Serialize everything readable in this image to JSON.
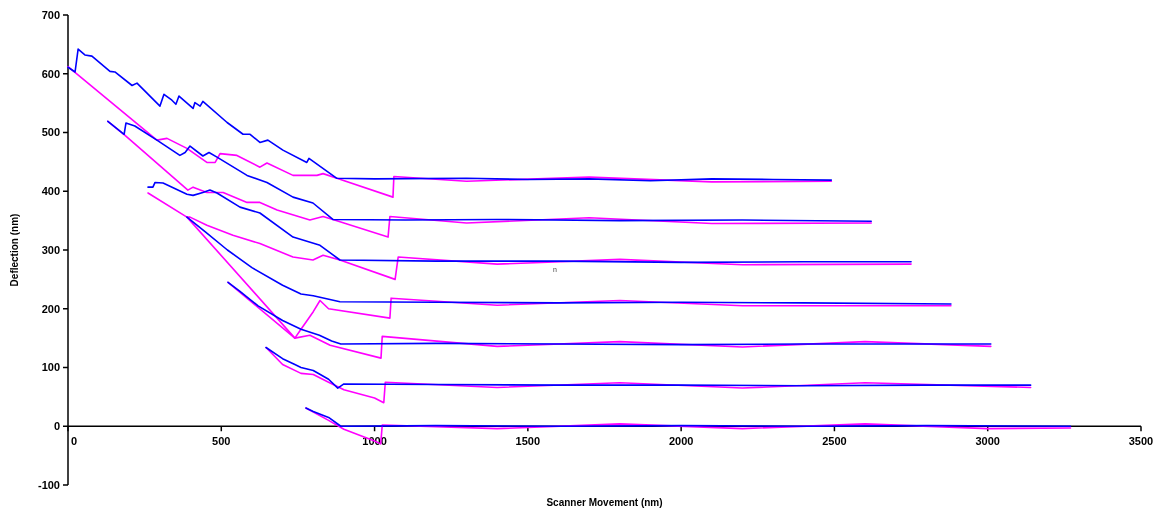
{
  "chart_data": {
    "type": "line",
    "xlabel": "Scanner Movement (nm)",
    "ylabel": "Deflection (nm)",
    "xlim": [
      0,
      3500
    ],
    "ylim": [
      -100,
      700
    ],
    "xticks": [
      0,
      500,
      1000,
      1500,
      2000,
      2500,
      3000,
      3500
    ],
    "yticks": [
      -100,
      0,
      100,
      200,
      300,
      400,
      500,
      600,
      700
    ],
    "grid": false,
    "annotations": [
      "n"
    ],
    "series": [
      {
        "color": "#ff00ff",
        "x": [
          0,
          290,
          323,
          388,
          453,
          480,
          496,
          551,
          626,
          649,
          734,
          812,
          832,
          877,
          1060,
          1063,
          1300,
          1700,
          2100,
          2490
        ],
        "values": [
          612,
          487,
          490,
          473,
          449,
          449,
          464,
          461,
          441,
          448,
          427,
          427,
          430,
          422,
          390,
          425,
          417,
          424,
          416,
          417
        ]
      },
      {
        "color": "#0000ff",
        "x": [
          0,
          23,
          33,
          55,
          78,
          137,
          153,
          209,
          225,
          300,
          313,
          339,
          352,
          362,
          408,
          414,
          431,
          440,
          519,
          571,
          594,
          626,
          652,
          701,
          779,
          786,
          877,
          1000,
          1300,
          1500,
          1700,
          1900,
          2100,
          2300,
          2490
        ],
        "values": [
          611,
          603,
          642,
          632,
          630,
          604,
          603,
          580,
          584,
          545,
          565,
          555,
          548,
          562,
          541,
          551,
          545,
          553,
          517,
          497,
          497,
          483,
          487,
          470,
          449,
          456,
          422,
          421,
          422,
          420,
          421,
          418,
          421,
          420,
          419
        ]
      },
      {
        "color": "#ff00ff",
        "x": [
          130,
          186,
          391,
          408,
          453,
          506,
          584,
          626,
          682,
          789,
          832,
          864,
          1044,
          1050,
          1300,
          1700,
          2100,
          2620
        ],
        "values": [
          519,
          495,
          402,
          407,
          398,
          398,
          381,
          381,
          368,
          351,
          357,
          352,
          322,
          357,
          346,
          355,
          345,
          346
        ]
      },
      {
        "color": "#0000ff",
        "x": [
          130,
          183,
          189,
          218,
          290,
          365,
          382,
          398,
          440,
          460,
          486,
          584,
          649,
          734,
          799,
          864,
          1100,
          1400,
          1800,
          2200,
          2620
        ],
        "values": [
          519,
          497,
          516,
          511,
          487,
          461,
          466,
          477,
          460,
          466,
          458,
          427,
          415,
          390,
          380,
          352,
          351,
          352,
          350,
          351,
          349
        ]
      },
      {
        "color": "#ff00ff",
        "x": [
          261,
          388,
          398,
          453,
          538,
          626,
          734,
          799,
          832,
          887,
          1067,
          1077,
          1400,
          1800,
          2200,
          2750
        ],
        "values": [
          397,
          356,
          356,
          342,
          325,
          311,
          288,
          283,
          291,
          283,
          250,
          288,
          276,
          284,
          275,
          276
        ]
      },
      {
        "color": "#0000ff",
        "x": [
          261,
          277,
          284,
          310,
          388,
          408,
          440,
          463,
          486,
          561,
          626,
          734,
          822,
          887,
          1200,
          1600,
          2000,
          2400,
          2750
        ],
        "values": [
          407,
          407,
          415,
          414,
          395,
          393,
          398,
          402,
          397,
          373,
          363,
          322,
          308,
          283,
          281,
          281,
          279,
          280,
          280
        ]
      },
      {
        "color": "#ff00ff",
        "x": [
          388,
          740,
          760,
          800,
          822,
          850,
          1050,
          1054,
          1400,
          1800,
          2200,
          2880
        ],
        "values": [
          356,
          150,
          165,
          195,
          214,
          200,
          184,
          218,
          206,
          214,
          205,
          205
        ]
      },
      {
        "color": "#0000ff",
        "x": [
          388,
          450,
          520,
          600,
          700,
          760,
          800,
          887,
          1200,
          1600,
          2000,
          2400,
          2880
        ],
        "values": [
          356,
          330,
          300,
          270,
          240,
          225,
          222,
          212,
          211,
          210,
          211,
          210,
          208
        ]
      },
      {
        "color": "#ff00ff",
        "x": [
          522,
          740,
          789,
          855,
          1021,
          1025,
          1400,
          1800,
          2200,
          2600,
          3010
        ],
        "values": [
          245,
          150,
          155,
          138,
          116,
          153,
          136,
          144,
          135,
          144,
          136
        ]
      },
      {
        "color": "#0000ff",
        "x": [
          522,
          560,
          620,
          700,
          760,
          820,
          860,
          890,
          1200,
          1600,
          2000,
          2400,
          3010
        ],
        "values": [
          245,
          230,
          205,
          180,
          165,
          155,
          145,
          140,
          141,
          140,
          139,
          140,
          140
        ]
      },
      {
        "color": "#ff00ff",
        "x": [
          646,
          700,
          760,
          800,
          850,
          900,
          1000,
          1030,
          1035,
          1400,
          1800,
          2200,
          2600,
          3140
        ],
        "values": [
          134,
          105,
          90,
          88,
          75,
          62,
          48,
          40,
          75,
          66,
          74,
          65,
          74,
          66
        ]
      },
      {
        "color": "#0000ff",
        "x": [
          646,
          700,
          740,
          760,
          800,
          850,
          880,
          900,
          1200,
          1600,
          2000,
          2400,
          2800,
          3140
        ],
        "values": [
          134,
          115,
          105,
          100,
          95,
          80,
          65,
          72,
          71,
          70,
          70,
          69,
          70,
          70
        ]
      },
      {
        "color": "#ff00ff",
        "x": [
          776,
          850,
          900,
          1000,
          1020,
          1025,
          1400,
          1800,
          2200,
          2600,
          3000,
          3270
        ],
        "values": [
          31,
          10,
          -5,
          -25,
          -30,
          2,
          -4,
          4,
          -4,
          4,
          -4,
          -3
        ]
      },
      {
        "color": "#0000ff",
        "x": [
          776,
          800,
          850,
          890,
          1200,
          1600,
          2000,
          2400,
          2800,
          3270
        ],
        "values": [
          31,
          25,
          15,
          0,
          1,
          0,
          1,
          0,
          1,
          0
        ]
      }
    ]
  }
}
